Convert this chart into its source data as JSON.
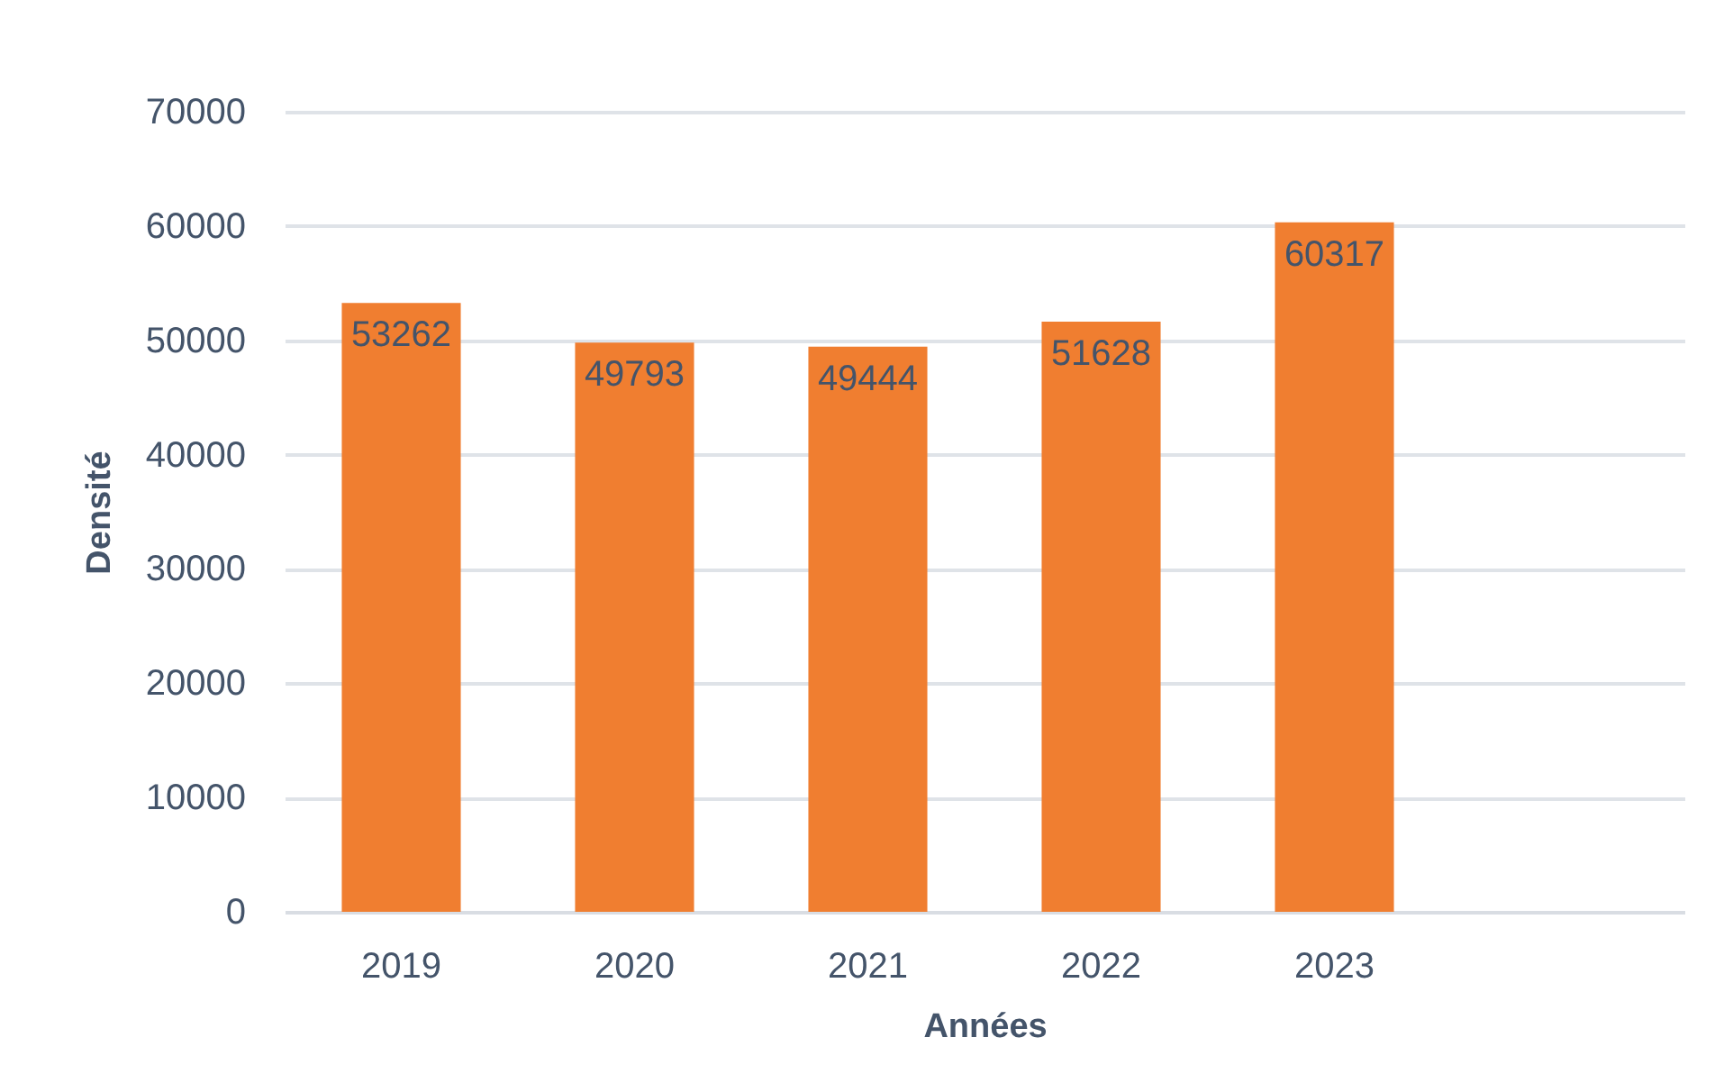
{
  "chart_data": {
    "type": "bar",
    "xlabel": "Années",
    "ylabel": "Densité",
    "categories": [
      "2019",
      "2020",
      "2021",
      "2022",
      "2023",
      null
    ],
    "values": [
      53262,
      49793,
      49444,
      51628,
      60317,
      null
    ],
    "color": "#f07e30",
    "ylim": [
      0,
      70000
    ],
    "yticks": [
      0,
      10000,
      20000,
      30000,
      40000,
      50000,
      60000,
      70000
    ],
    "grid": "y",
    "data_labels": true
  }
}
